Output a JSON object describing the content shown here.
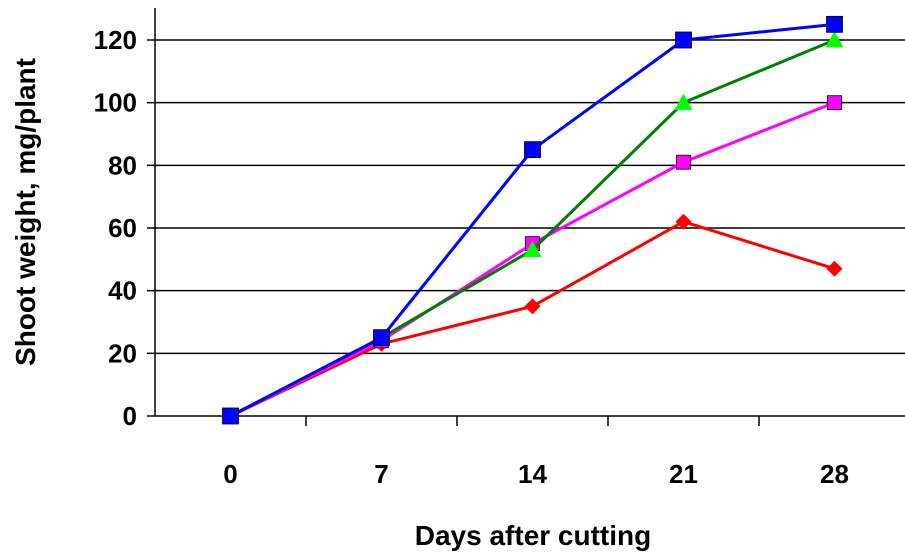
{
  "chart_data": {
    "type": "line",
    "xlabel": "Days after cutting",
    "ylabel": "Shoot weight, mg/plant",
    "categories": [
      "0",
      "7",
      "14",
      "21",
      "28"
    ],
    "ylim": [
      0,
      120
    ],
    "yticks": [
      0,
      20,
      40,
      60,
      80,
      100,
      120
    ],
    "grid": "horizontal",
    "legend": "none",
    "series": [
      {
        "color": "#ff0000",
        "marker": "diamond",
        "values": [
          0,
          23,
          35,
          62,
          47
        ]
      },
      {
        "color": "#ff00ff",
        "marker": "square",
        "values": [
          0,
          24,
          55,
          81,
          100
        ]
      },
      {
        "color": "#008000",
        "marker_color": "#00ff00",
        "marker": "triangle",
        "values": [
          0,
          25,
          53,
          100,
          120
        ]
      },
      {
        "color": "#0000ff",
        "marker": "square",
        "values": [
          0,
          25,
          85,
          120,
          125
        ]
      }
    ]
  }
}
